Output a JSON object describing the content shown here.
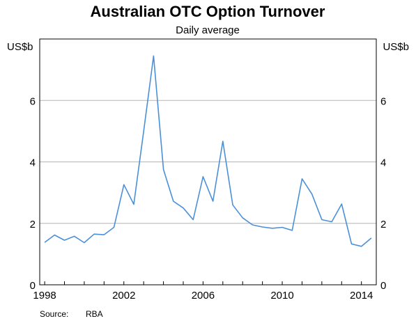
{
  "chart_data": {
    "type": "line",
    "title": "Australian OTC Option Turnover",
    "subtitle": "Daily average",
    "ylabel_left": "US$b",
    "ylabel_right": "US$b",
    "xlabel": "",
    "ylim": [
      0,
      8
    ],
    "xlim": [
      1997.75,
      2014.75
    ],
    "yticks": [
      0,
      2,
      4,
      6
    ],
    "xtick_labels": [
      "1998",
      "2002",
      "2006",
      "2010",
      "2014"
    ],
    "xtick_label_values": [
      1998,
      2002,
      2006,
      2010,
      2014
    ],
    "grid": true,
    "legend": "none",
    "source_label": "Source:",
    "source": "RBA",
    "series": [
      {
        "color": "#4a90d9",
        "x": [
          1998.0,
          1998.5,
          1999.0,
          1999.5,
          2000.0,
          2000.5,
          2001.0,
          2001.5,
          2002.0,
          2002.5,
          2003.0,
          2003.5,
          2004.0,
          2004.5,
          2005.0,
          2005.5,
          2006.0,
          2006.5,
          2007.0,
          2007.5,
          2008.0,
          2008.5,
          2009.0,
          2009.5,
          2010.0,
          2010.5,
          2011.0,
          2011.5,
          2012.0,
          2012.5,
          2013.0,
          2013.5,
          2014.0,
          2014.5
        ],
        "y": [
          1.38,
          1.62,
          1.45,
          1.58,
          1.37,
          1.65,
          1.63,
          1.87,
          3.26,
          2.62,
          5.0,
          7.45,
          3.75,
          2.72,
          2.5,
          2.12,
          3.52,
          2.72,
          4.67,
          2.6,
          2.18,
          1.95,
          1.88,
          1.84,
          1.87,
          1.77,
          3.45,
          2.95,
          2.12,
          2.05,
          2.63,
          1.33,
          1.25,
          1.52
        ]
      }
    ]
  }
}
